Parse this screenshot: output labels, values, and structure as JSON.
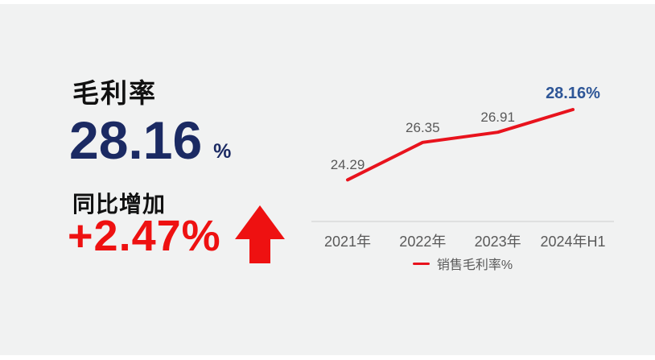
{
  "colors": {
    "page-bg": "#f1f2f2",
    "frame-bg": "#ffffff",
    "title-text": "#111111",
    "navy": "#1b2a63",
    "red": "#ee1111",
    "gray-label": "#595959"
  },
  "kpi": {
    "title": "毛利率",
    "value": "28.16",
    "unit": "%",
    "change_label": "同比增加",
    "change_value": "+2.47%"
  },
  "chart_data": {
    "type": "line",
    "title": "",
    "categories": [
      "2021年",
      "2022年",
      "2023年",
      "2024年H1"
    ],
    "series": [
      {
        "name": "销售毛利率%",
        "values": [
          24.29,
          26.35,
          26.91,
          28.16
        ]
      }
    ],
    "point_labels": [
      "24.29",
      "26.35",
      "26.91",
      "28.16%"
    ],
    "highlight_index": 3,
    "xlabel": "",
    "ylabel": "",
    "ylim": [
      22,
      29
    ],
    "grid": false,
    "legend": {
      "label": "销售毛利率%",
      "position": "bottom"
    },
    "line_color": "#e8131d",
    "label_color": "#595959",
    "highlight_label_color": "#2e5697",
    "axis_line_color": "#d9d9d9"
  }
}
